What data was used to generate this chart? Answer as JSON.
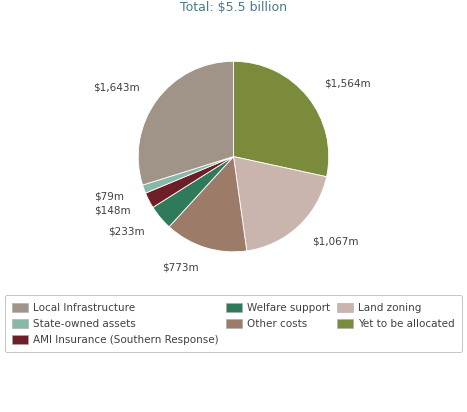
{
  "title": "Total: $5.5 billion",
  "title_color": "#4a7a8a",
  "slices": [
    {
      "label": "Yet to be allocated",
      "value": 1564,
      "color": "#7a8c3c",
      "annotation": "$1,564m"
    },
    {
      "label": "Land zoning",
      "value": 1067,
      "color": "#c9b5ae",
      "annotation": "$1,067m"
    },
    {
      "label": "Other costs",
      "value": 773,
      "color": "#9c7c68",
      "annotation": "$773m"
    },
    {
      "label": "Welfare support",
      "value": 233,
      "color": "#2e7a5a",
      "annotation": "$233m"
    },
    {
      "label": "AMI Insurance (Southern Response)",
      "value": 148,
      "color": "#6e1e26",
      "annotation": "$148m"
    },
    {
      "label": "State-owned assets",
      "value": 79,
      "color": "#88b8a8",
      "annotation": "$79m"
    },
    {
      "label": "Local Infrastructure",
      "value": 1643,
      "color": "#a09488",
      "annotation": "$1,643m"
    }
  ],
  "legend_order": [
    "Local Infrastructure",
    "State-owned assets",
    "AMI Insurance (Southern Response)",
    "Welfare support",
    "Other costs",
    "Land zoning",
    "Yet to be allocated"
  ],
  "legend_colors": {
    "Local Infrastructure": "#a09488",
    "State-owned assets": "#88b8a8",
    "AMI Insurance (Southern Response)": "#6e1e26",
    "Welfare support": "#2e7a5a",
    "Other costs": "#9c7c68",
    "Land zoning": "#c9b5ae",
    "Yet to be allocated": "#7a8c3c"
  },
  "background_color": "#ffffff",
  "text_color": "#404040",
  "title_fontsize": 9,
  "label_fontsize": 7.5,
  "legend_fontsize": 7.5
}
